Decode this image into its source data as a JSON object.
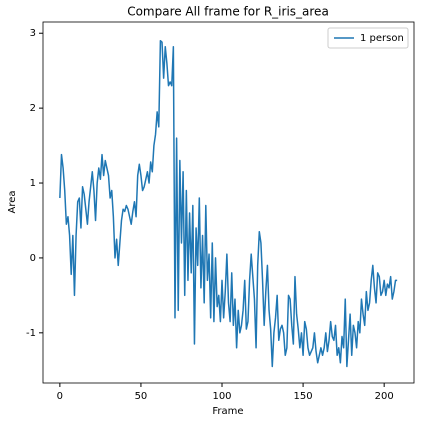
{
  "chart_data": {
    "type": "line",
    "title": "Compare All frame for R_iris_area",
    "x_label": "Frame",
    "y_label": "Area",
    "legend": "upper right",
    "x": [
      0,
      1,
      2,
      3,
      4,
      5,
      6,
      7,
      8,
      9,
      10,
      11,
      12,
      13,
      14,
      15,
      16,
      17,
      18,
      19,
      20,
      21,
      22,
      23,
      24,
      25,
      26,
      27,
      28,
      29,
      30,
      31,
      32,
      33,
      34,
      35,
      36,
      37,
      38,
      39,
      40,
      41,
      42,
      43,
      44,
      45,
      46,
      47,
      48,
      49,
      50,
      51,
      52,
      53,
      54,
      55,
      56,
      57,
      58,
      59,
      60,
      61,
      62,
      63,
      64,
      65,
      66,
      67,
      68,
      69,
      70,
      71,
      72,
      73,
      74,
      75,
      76,
      77,
      78,
      79,
      80,
      81,
      82,
      83,
      84,
      85,
      86,
      87,
      88,
      89,
      90,
      91,
      92,
      93,
      94,
      95,
      96,
      97,
      98,
      99,
      100,
      101,
      102,
      103,
      104,
      105,
      106,
      107,
      108,
      109,
      110,
      111,
      112,
      113,
      114,
      115,
      116,
      117,
      118,
      119,
      120,
      121,
      122,
      123,
      124,
      125,
      126,
      127,
      128,
      129,
      130,
      131,
      132,
      133,
      134,
      135,
      136,
      137,
      138,
      139,
      140,
      141,
      142,
      143,
      144,
      145,
      146,
      147,
      148,
      149,
      150,
      151,
      152,
      153,
      154,
      155,
      156,
      157,
      158,
      159,
      160,
      161,
      162,
      163,
      164,
      165,
      166,
      167,
      168,
      169,
      170,
      171,
      172,
      173,
      174,
      175,
      176,
      177,
      178,
      179,
      180,
      181,
      182,
      183,
      184,
      185,
      186,
      187,
      188,
      189,
      190,
      191,
      192,
      193,
      194,
      195,
      196,
      197,
      198,
      199,
      200,
      201,
      202,
      203,
      204,
      205,
      206,
      207,
      208
    ],
    "series": [
      {
        "name": "1 person",
        "color": "#1f77b4",
        "values": [
          0.8,
          1.38,
          1.2,
          0.9,
          0.45,
          0.55,
          0.3,
          -0.22,
          0.3,
          -0.5,
          0.3,
          0.75,
          0.8,
          0.4,
          0.95,
          0.85,
          0.65,
          0.45,
          0.75,
          0.95,
          1.15,
          0.9,
          0.5,
          1.0,
          1.2,
          1.05,
          1.38,
          1.1,
          1.3,
          1.2,
          1.1,
          0.8,
          0.9,
          0.55,
          0.0,
          0.25,
          -0.1,
          0.2,
          0.5,
          0.65,
          0.62,
          0.7,
          0.65,
          0.55,
          0.45,
          0.62,
          0.75,
          0.55,
          1.1,
          1.25,
          1.1,
          0.9,
          0.95,
          1.05,
          1.15,
          1.0,
          1.28,
          1.15,
          1.5,
          1.65,
          1.95,
          1.75,
          2.9,
          2.88,
          2.4,
          2.82,
          2.6,
          2.3,
          2.35,
          2.3,
          2.82,
          -0.8,
          1.6,
          -0.7,
          1.3,
          0.2,
          1.15,
          -0.5,
          0.9,
          -0.3,
          0.6,
          -0.2,
          0.7,
          -1.15,
          0.4,
          -0.1,
          0.8,
          -0.4,
          0.3,
          -0.6,
          0.7,
          -0.3,
          0.05,
          -0.8,
          0.2,
          -0.85,
          0.0,
          -0.65,
          -0.5,
          -0.85,
          -0.3,
          -0.8,
          -0.45,
          0.05,
          -0.6,
          -0.85,
          -0.2,
          -0.9,
          -0.55,
          -1.2,
          -0.7,
          -1.0,
          -0.9,
          -0.7,
          -0.3,
          -0.95,
          -0.85,
          -0.3,
          0.05,
          -0.25,
          -0.55,
          -1.2,
          -0.1,
          0.35,
          0.2,
          -0.3,
          -0.9,
          -0.45,
          -0.1,
          -0.7,
          -0.95,
          -1.45,
          -1.0,
          -0.8,
          -0.5,
          -1.1,
          -0.95,
          -0.9,
          -1.0,
          -1.3,
          -1.2,
          -0.5,
          -0.55,
          -0.9,
          -1.15,
          -0.25,
          -0.75,
          -0.95,
          -1.2,
          -1.0,
          -1.3,
          -0.85,
          -0.95,
          -1.2,
          -1.3,
          -1.25,
          -1.2,
          -1.0,
          -1.25,
          -1.4,
          -1.3,
          -1.2,
          -1.3,
          -1.2,
          -1.0,
          -1.25,
          -1.1,
          -0.85,
          -1.05,
          -1.1,
          -0.9,
          -1.3,
          -1.2,
          -1.4,
          -1.05,
          -1.2,
          -0.55,
          -1.45,
          -1.1,
          -0.75,
          -1.3,
          -0.9,
          -1.0,
          -1.2,
          -0.85,
          -1.0,
          -0.55,
          -0.75,
          -0.9,
          -0.45,
          -0.7,
          -0.6,
          -0.3,
          -0.1,
          -0.4,
          -0.6,
          -0.2,
          -0.25,
          -0.5,
          -0.45,
          -0.3,
          -0.5,
          -0.35,
          -0.4,
          -0.25,
          -0.55,
          -0.45,
          -0.3,
          -0.3
        ]
      }
    ],
    "xlim": [
      -10.4,
      218.4
    ],
    "xticks": [
      0,
      50,
      100,
      150,
      200
    ],
    "ylim": [
      -1.67,
      3.15
    ],
    "yticks": [
      -1,
      0,
      1,
      2,
      3
    ]
  }
}
